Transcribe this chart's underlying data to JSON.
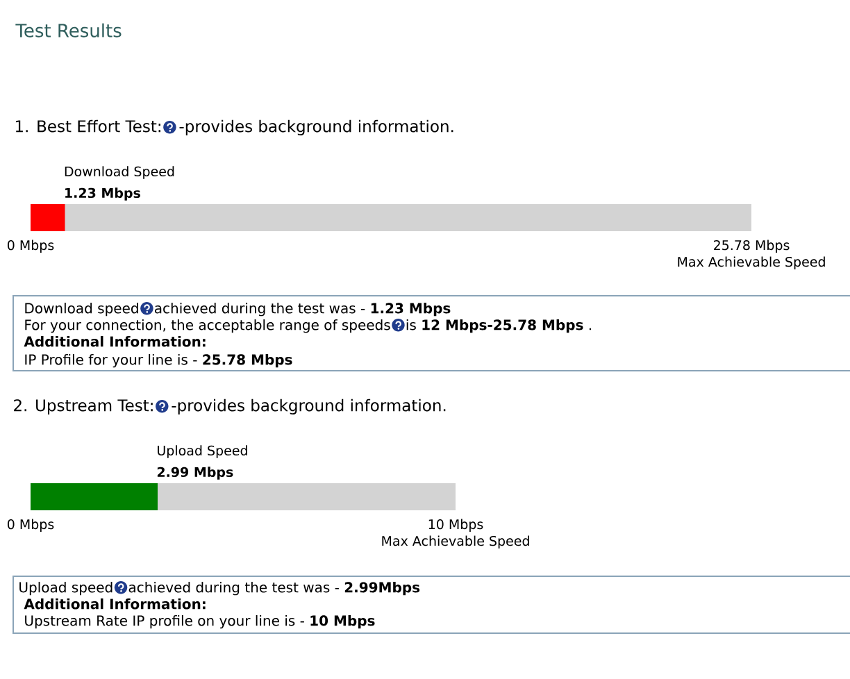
{
  "chart_data": [
    {
      "type": "bar",
      "orientation": "horizontal",
      "title": "Test Results",
      "subtitle": "1. Best Effort Test:",
      "categories": [
        "Download Speed"
      ],
      "values": [
        1.23
      ],
      "color": "#ff0000",
      "value_labels": [
        "1.23 Mbps"
      ],
      "xlim": [
        0,
        25.78
      ],
      "xticks": [
        {
          "value": 0,
          "label": "0 Mbps"
        },
        {
          "value": 25.78,
          "label": "25.78 Mbps"
        }
      ],
      "xlabel": "Max Achievable Speed",
      "bands": [
        {
          "axis": "x",
          "from": 0,
          "to": 25.78,
          "color": "#d3d3d3"
        }
      ],
      "annotations": [
        "-provides background information.",
        "Download speed",
        "achieved during the test was - **1.23 Mbps**",
        "For your connection, the acceptable range of speeds",
        "is **12 Mbps-25.78 Mbps** .",
        "Additional Information:",
        "IP Profile for your line is - **25.78 Mbps**"
      ]
    },
    {
      "type": "bar",
      "orientation": "horizontal",
      "title": "2. Upstream Test:",
      "categories": [
        "Upload Speed"
      ],
      "values": [
        2.99
      ],
      "color": "#008000",
      "value_labels": [
        "2.99 Mbps"
      ],
      "xlim": [
        0,
        10
      ],
      "xticks": [
        {
          "value": 0,
          "label": "0 Mbps"
        },
        {
          "value": 10,
          "label": "10 Mbps"
        }
      ],
      "xlabel": "Max Achievable Speed",
      "bands": [
        {
          "axis": "x",
          "from": 0,
          "to": 10,
          "color": "#d3d3d3"
        }
      ],
      "annotations": [
        "-provides background information.",
        "Upload speed",
        "achieved during the test was - **2.99Mbps**",
        "Additional Information:",
        "Upstream Rate IP profile on your line is - **10 Mbps**"
      ]
    }
  ]
}
